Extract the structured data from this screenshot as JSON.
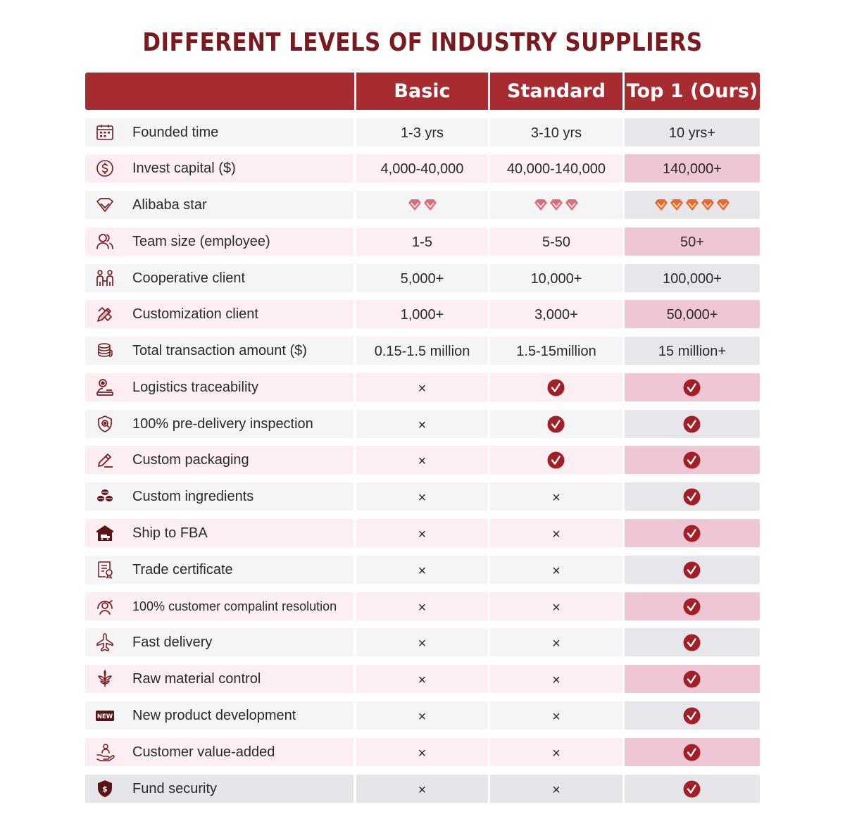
{
  "title": "DIFFERENT LEVELS OF INDUSTRY SUPPLIERS",
  "header": {
    "basic": "Basic",
    "standard": "Standard",
    "top": "Top 1 (Ours)"
  },
  "colors": {
    "brand": "#a72c30",
    "title": "#7a1a1f",
    "check": "#a31f26",
    "diamond_basic": "#df6d79",
    "diamond_top": "#f26522"
  },
  "rows": [
    {
      "icon": "calendar-icon",
      "label": "Founded time",
      "basic": "1-3 yrs",
      "standard": "3-10 yrs",
      "top": "10 yrs+"
    },
    {
      "icon": "dollar-coin-icon",
      "label": "Invest capital ($)",
      "basic": "4,000-40,000",
      "standard": "40,000-140,000",
      "top": "140,000+"
    },
    {
      "icon": "diamond-icon",
      "label": "Alibaba star",
      "basic_stars": 2,
      "standard_stars": 3,
      "top_stars": 5
    },
    {
      "icon": "team-icon",
      "label": "Team size (employee)",
      "basic": "1-5",
      "standard": "5-50",
      "top": "50+"
    },
    {
      "icon": "clients-icon",
      "label": "Cooperative client",
      "basic": "5,000+",
      "standard": "10,000+",
      "top": "100,000+"
    },
    {
      "icon": "pencil-ruler-icon",
      "label": "Customization client",
      "basic": "1,000+",
      "standard": "3,000+",
      "top": "50,000+"
    },
    {
      "icon": "coin-stack-icon",
      "label": "Total transaction amount ($)",
      "basic": "0.15-1.5 million",
      "standard": "1.5-15million",
      "top": "15 million+"
    },
    {
      "icon": "location-person-icon",
      "label": "Logistics traceability",
      "basic": "×",
      "standard": "check",
      "top": "check"
    },
    {
      "icon": "shield-eye-icon",
      "label": "100% pre-delivery inspection",
      "basic": "×",
      "standard": "check",
      "top": "check"
    },
    {
      "icon": "edit-icon",
      "label": "Custom packaging",
      "basic": "×",
      "standard": "check",
      "top": "check"
    },
    {
      "icon": "leaves-icon",
      "label": "Custom ingredients",
      "basic": "×",
      "standard": "×",
      "top": "check"
    },
    {
      "icon": "warehouse-truck-icon",
      "label": "Ship to FBA",
      "basic": "×",
      "standard": "×",
      "top": "check"
    },
    {
      "icon": "certificate-icon",
      "label": "Trade certificate",
      "basic": "×",
      "standard": "×",
      "top": "check"
    },
    {
      "icon": "support-icon",
      "label": "100% customer compalint resolution",
      "basic": "×",
      "standard": "×",
      "top": "check"
    },
    {
      "icon": "airplane-icon",
      "label": "Fast delivery",
      "basic": "×",
      "standard": "×",
      "top": "check"
    },
    {
      "icon": "sprout-icon",
      "label": "Raw material control",
      "basic": "×",
      "standard": "×",
      "top": "check"
    },
    {
      "icon": "new-badge-icon",
      "label": "New product development",
      "badge": "NEW",
      "basic": "×",
      "standard": "×",
      "top": "check"
    },
    {
      "icon": "hand-person-icon",
      "label": "Customer value-added",
      "basic": "×",
      "standard": "×",
      "top": "check"
    },
    {
      "icon": "shield-dollar-icon",
      "label": "Fund security",
      "basic": "×",
      "standard": "×",
      "top": "check"
    }
  ]
}
